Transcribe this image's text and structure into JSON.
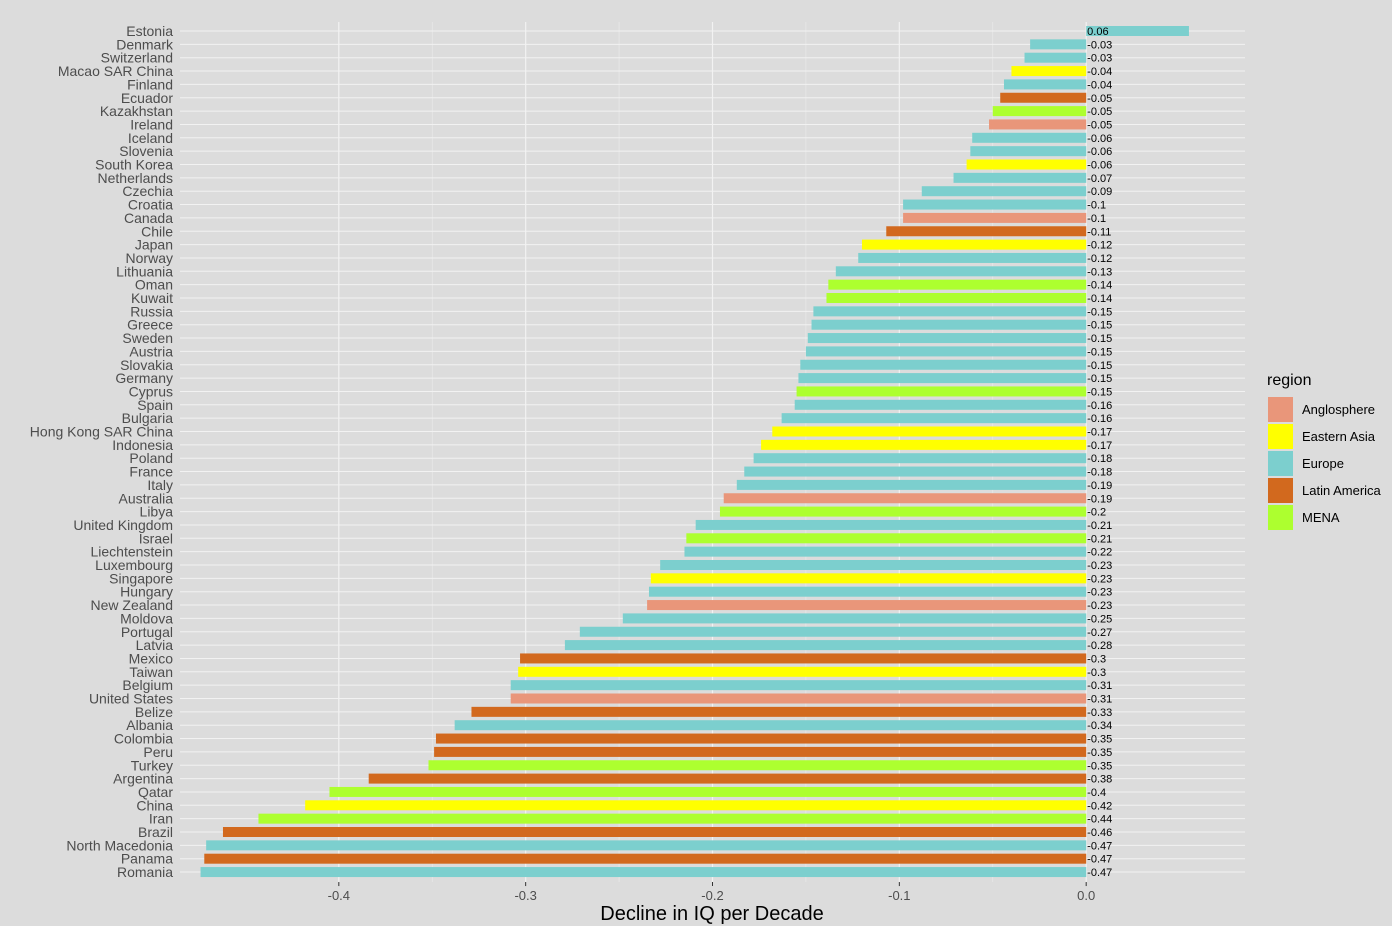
{
  "chart_data": {
    "type": "bar",
    "orientation": "horizontal",
    "xlabel": "Decline in IQ per Decade",
    "ylabel": "",
    "xlim": [
      -0.485,
      0.085
    ],
    "xticks": [
      -0.4,
      -0.3,
      -0.2,
      -0.1,
      0.0
    ],
    "xtick_labels": [
      "-0.4",
      "-0.3",
      "-0.2",
      "-0.1",
      "0.0"
    ],
    "grid": true,
    "legend": {
      "title": "region",
      "placement": "right",
      "entries": [
        {
          "name": "Anglosphere",
          "color": "#e9967a"
        },
        {
          "name": "Eastern Asia",
          "color": "#ffff00"
        },
        {
          "name": "Europe",
          "color": "#7ccfce"
        },
        {
          "name": "Latin America",
          "color": "#d2691e"
        },
        {
          "name": "MENA",
          "color": "#adff2f"
        }
      ]
    },
    "bars": [
      {
        "country": "Estonia",
        "value": 0.055,
        "label": "0.06",
        "region": "Europe"
      },
      {
        "country": "Denmark",
        "value": -0.03,
        "label": "-0.03",
        "region": "Europe"
      },
      {
        "country": "Switzerland",
        "value": -0.033,
        "label": "-0.03",
        "region": "Europe"
      },
      {
        "country": "Macao SAR China",
        "value": -0.04,
        "label": "-0.04",
        "region": "Eastern Asia"
      },
      {
        "country": "Finland",
        "value": -0.044,
        "label": "-0.04",
        "region": "Europe"
      },
      {
        "country": "Ecuador",
        "value": -0.046,
        "label": "-0.05",
        "region": "Latin America"
      },
      {
        "country": "Kazakhstan",
        "value": -0.05,
        "label": "-0.05",
        "region": "MENA"
      },
      {
        "country": "Ireland",
        "value": -0.052,
        "label": "-0.05",
        "region": "Anglosphere"
      },
      {
        "country": "Iceland",
        "value": -0.061,
        "label": "-0.06",
        "region": "Europe"
      },
      {
        "country": "Slovenia",
        "value": -0.062,
        "label": "-0.06",
        "region": "Europe"
      },
      {
        "country": "South Korea",
        "value": -0.064,
        "label": "-0.06",
        "region": "Eastern Asia"
      },
      {
        "country": "Netherlands",
        "value": -0.071,
        "label": "-0.07",
        "region": "Europe"
      },
      {
        "country": "Czechia",
        "value": -0.088,
        "label": "-0.09",
        "region": "Europe"
      },
      {
        "country": "Croatia",
        "value": -0.098,
        "label": "-0.1",
        "region": "Europe"
      },
      {
        "country": "Canada",
        "value": -0.098,
        "label": "-0.1",
        "region": "Anglosphere"
      },
      {
        "country": "Chile",
        "value": -0.107,
        "label": "-0.11",
        "region": "Latin America"
      },
      {
        "country": "Japan",
        "value": -0.12,
        "label": "-0.12",
        "region": "Eastern Asia"
      },
      {
        "country": "Norway",
        "value": -0.122,
        "label": "-0.12",
        "region": "Europe"
      },
      {
        "country": "Lithuania",
        "value": -0.134,
        "label": "-0.13",
        "region": "Europe"
      },
      {
        "country": "Oman",
        "value": -0.138,
        "label": "-0.14",
        "region": "MENA"
      },
      {
        "country": "Kuwait",
        "value": -0.139,
        "label": "-0.14",
        "region": "MENA"
      },
      {
        "country": "Russia",
        "value": -0.146,
        "label": "-0.15",
        "region": "Europe"
      },
      {
        "country": "Greece",
        "value": -0.147,
        "label": "-0.15",
        "region": "Europe"
      },
      {
        "country": "Sweden",
        "value": -0.149,
        "label": "-0.15",
        "region": "Europe"
      },
      {
        "country": "Austria",
        "value": -0.15,
        "label": "-0.15",
        "region": "Europe"
      },
      {
        "country": "Slovakia",
        "value": -0.153,
        "label": "-0.15",
        "region": "Europe"
      },
      {
        "country": "Germany",
        "value": -0.154,
        "label": "-0.15",
        "region": "Europe"
      },
      {
        "country": "Cyprus",
        "value": -0.155,
        "label": "-0.15",
        "region": "MENA"
      },
      {
        "country": "Spain",
        "value": -0.156,
        "label": "-0.16",
        "region": "Europe"
      },
      {
        "country": "Bulgaria",
        "value": -0.163,
        "label": "-0.16",
        "region": "Europe"
      },
      {
        "country": "Hong Kong SAR China",
        "value": -0.168,
        "label": "-0.17",
        "region": "Eastern Asia"
      },
      {
        "country": "Indonesia",
        "value": -0.174,
        "label": "-0.17",
        "region": "Eastern Asia"
      },
      {
        "country": "Poland",
        "value": -0.178,
        "label": "-0.18",
        "region": "Europe"
      },
      {
        "country": "France",
        "value": -0.183,
        "label": "-0.18",
        "region": "Europe"
      },
      {
        "country": "Italy",
        "value": -0.187,
        "label": "-0.19",
        "region": "Europe"
      },
      {
        "country": "Australia",
        "value": -0.194,
        "label": "-0.19",
        "region": "Anglosphere"
      },
      {
        "country": "Libya",
        "value": -0.196,
        "label": "-0.2",
        "region": "MENA"
      },
      {
        "country": "United Kingdom",
        "value": -0.209,
        "label": "-0.21",
        "region": "Europe"
      },
      {
        "country": "Israel",
        "value": -0.214,
        "label": "-0.21",
        "region": "MENA"
      },
      {
        "country": "Liechtenstein",
        "value": -0.215,
        "label": "-0.22",
        "region": "Europe"
      },
      {
        "country": "Luxembourg",
        "value": -0.228,
        "label": "-0.23",
        "region": "Europe"
      },
      {
        "country": "Singapore",
        "value": -0.233,
        "label": "-0.23",
        "region": "Eastern Asia"
      },
      {
        "country": "Hungary",
        "value": -0.234,
        "label": "-0.23",
        "region": "Europe"
      },
      {
        "country": "New Zealand",
        "value": -0.235,
        "label": "-0.23",
        "region": "Anglosphere"
      },
      {
        "country": "Moldova",
        "value": -0.248,
        "label": "-0.25",
        "region": "Europe"
      },
      {
        "country": "Portugal",
        "value": -0.271,
        "label": "-0.27",
        "region": "Europe"
      },
      {
        "country": "Latvia",
        "value": -0.279,
        "label": "-0.28",
        "region": "Europe"
      },
      {
        "country": "Mexico",
        "value": -0.303,
        "label": "-0.3",
        "region": "Latin America"
      },
      {
        "country": "Taiwan",
        "value": -0.304,
        "label": "-0.3",
        "region": "Eastern Asia"
      },
      {
        "country": "Belgium",
        "value": -0.308,
        "label": "-0.31",
        "region": "Europe"
      },
      {
        "country": "United States",
        "value": -0.308,
        "label": "-0.31",
        "region": "Anglosphere"
      },
      {
        "country": "Belize",
        "value": -0.329,
        "label": "-0.33",
        "region": "Latin America"
      },
      {
        "country": "Albania",
        "value": -0.338,
        "label": "-0.34",
        "region": "Europe"
      },
      {
        "country": "Colombia",
        "value": -0.348,
        "label": "-0.35",
        "region": "Latin America"
      },
      {
        "country": "Peru",
        "value": -0.349,
        "label": "-0.35",
        "region": "Latin America"
      },
      {
        "country": "Turkey",
        "value": -0.352,
        "label": "-0.35",
        "region": "MENA"
      },
      {
        "country": "Argentina",
        "value": -0.384,
        "label": "-0.38",
        "region": "Latin America"
      },
      {
        "country": "Qatar",
        "value": -0.405,
        "label": "-0.4",
        "region": "MENA"
      },
      {
        "country": "China",
        "value": -0.418,
        "label": "-0.42",
        "region": "Eastern Asia"
      },
      {
        "country": "Iran",
        "value": -0.443,
        "label": "-0.44",
        "region": "MENA"
      },
      {
        "country": "Brazil",
        "value": -0.462,
        "label": "-0.46",
        "region": "Latin America"
      },
      {
        "country": "North Macedonia",
        "value": -0.471,
        "label": "-0.47",
        "region": "Europe"
      },
      {
        "country": "Panama",
        "value": -0.472,
        "label": "-0.47",
        "region": "Latin America"
      },
      {
        "country": "Romania",
        "value": -0.474,
        "label": "-0.47",
        "region": "Europe"
      }
    ]
  }
}
